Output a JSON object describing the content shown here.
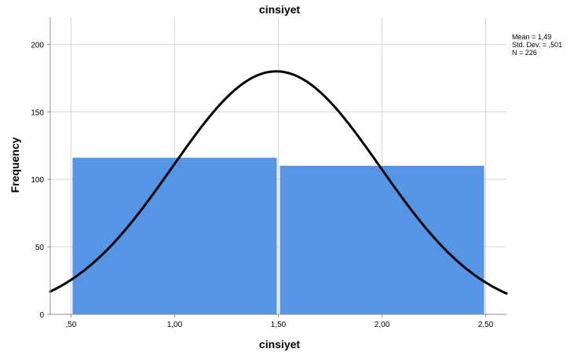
{
  "chart_data": {
    "type": "bar",
    "title": "cinsiyet",
    "xlabel": "cinsiyet",
    "ylabel": "Frequency",
    "xlim": [
      0.4,
      2.6
    ],
    "ylim": [
      0,
      220
    ],
    "x_ticks": [
      0.5,
      1.0,
      1.5,
      2.0,
      2.5
    ],
    "x_tick_labels": [
      ",50",
      "1,00",
      "1,50",
      "2,00",
      "2,50"
    ],
    "y_ticks": [
      0,
      50,
      100,
      150,
      200
    ],
    "y_tick_labels": [
      "0",
      "50",
      "100",
      "150",
      "200"
    ],
    "bins": [
      {
        "start": 0.5,
        "end": 1.5,
        "value": 116
      },
      {
        "start": 1.5,
        "end": 2.5,
        "value": 110
      }
    ],
    "normal_curve": {
      "mean": 1.49,
      "std": 0.501,
      "n": 226,
      "bin_width": 1,
      "x_range": [
        0.4,
        2.6
      ]
    },
    "stats_text": [
      "Mean = 1,49",
      "Std. Dev. = ,501",
      "N = 226"
    ],
    "grid": true,
    "legend_position": "top-right",
    "colors": {
      "bar": "#5694e5",
      "grid": "#d4d4d4",
      "axis": "#8c8c8c",
      "curve": "#000000",
      "text": "#000000"
    }
  }
}
